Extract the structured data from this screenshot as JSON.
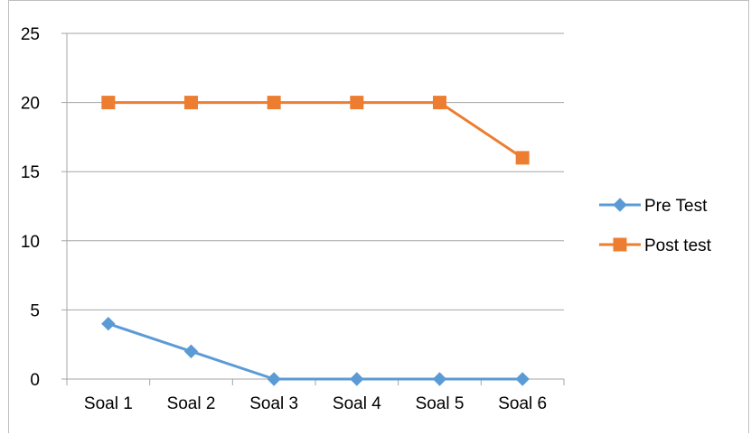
{
  "chart_data": {
    "type": "line",
    "title": "",
    "xlabel": "",
    "ylabel": "",
    "categories": [
      "Soal 1",
      "Soal 2",
      "Soal 3",
      "Soal 4",
      "Soal 5",
      "Soal 6"
    ],
    "ylim": [
      0,
      25
    ],
    "yticks": [
      "0",
      "5",
      "10",
      "15",
      "20",
      "25"
    ],
    "grid": true,
    "legend_position": "right",
    "series": [
      {
        "name": "Pre Test",
        "values": [
          4,
          2,
          0,
          0,
          0,
          0
        ],
        "color": "#5b9bd5",
        "marker": "diamond"
      },
      {
        "name": "Post test",
        "values": [
          20,
          20,
          20,
          20,
          20,
          16
        ],
        "color": "#ed7d31",
        "marker": "square"
      }
    ]
  }
}
